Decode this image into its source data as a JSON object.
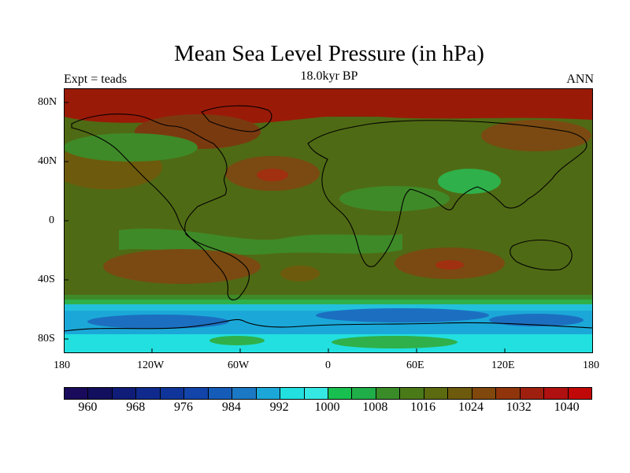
{
  "title": "Mean Sea Level Pressure (in hPa)",
  "subtitle_left": "Expt = teads",
  "subtitle_center": "18.0kyr BP",
  "subtitle_right": "ANN",
  "x_ticks": [
    "180",
    "120W",
    "60W",
    "0",
    "60E",
    "120E",
    "180"
  ],
  "y_ticks": [
    "80N",
    "40N",
    "0",
    "40S",
    "80S"
  ],
  "colorbar": {
    "colors": [
      "#1a0a5c",
      "#12105e",
      "#0f1c78",
      "#0f2a8c",
      "#10359a",
      "#1244aa",
      "#155cb8",
      "#1b78c4",
      "#1ba8d8",
      "#22e0e0",
      "#36e8e4",
      "#18c050",
      "#1fae48",
      "#3a8c28",
      "#4a7a18",
      "#5c6a10",
      "#6e5a0c",
      "#80480c",
      "#90340c",
      "#a02010",
      "#b01010",
      "#c00808"
    ],
    "tick_labels": [
      "960",
      "968",
      "976",
      "984",
      "992",
      "1000",
      "1008",
      "1016",
      "1024",
      "1032",
      "1040"
    ]
  },
  "colors": {
    "high": "#8b1a0a",
    "highest": "#a81a08",
    "mid_high": "#7a4a12",
    "mid": "#4f6a14",
    "low_green": "#3e8a28",
    "green": "#2fb04a",
    "cyan": "#1ee0e0",
    "light_blue": "#22c0dc",
    "blue": "#1c6fc0"
  }
}
